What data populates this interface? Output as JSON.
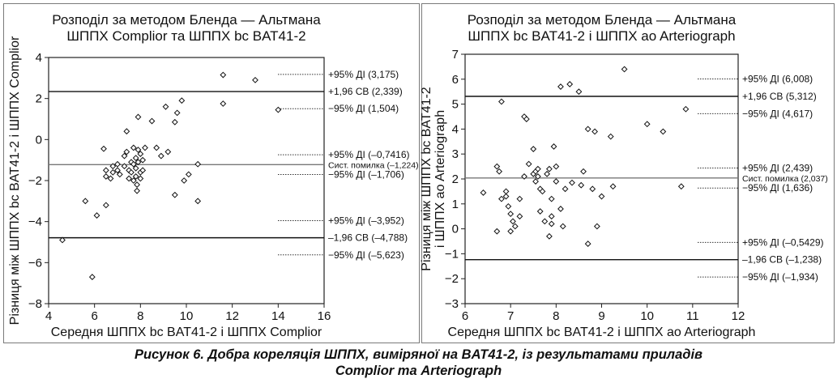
{
  "caption": {
    "line1": "Рисунок 6.  Добра кореляція ШППХ, виміряної на BAT41-2, із результатами приладів",
    "line2": "Complior та Arteriograph"
  },
  "chart_data": [
    {
      "type": "scatter",
      "title_line1": "Розподіл за методом Бленда — Альтмана",
      "title_line2": "ШППХ Complior та ШППХ bc BAT41-2",
      "xlabel": "Середня ШППХ bc BAT41-2 і ШППХ Complior",
      "ylabel": "Різниця між ШППХ bc BAT41-2 і ШППХ Complior",
      "xlim": [
        4,
        16
      ],
      "ylim": [
        -8,
        4
      ],
      "xticks": [
        "4",
        "6",
        "8",
        "10",
        "12",
        "14",
        "16"
      ],
      "yticks": [
        "−8",
        "−6",
        "−4",
        "−2",
        "0",
        "2",
        "4"
      ],
      "hlines": [
        {
          "y": 3.175,
          "style": "dotted",
          "label": "+95% ДІ (3,175)"
        },
        {
          "y": 2.339,
          "style": "solid",
          "label": "+1,96 СВ (2,339)"
        },
        {
          "y": 1.504,
          "style": "dotted",
          "label": "−95% ДІ (1,504)"
        },
        {
          "y": -0.7416,
          "style": "dotted",
          "label": "+95% ДІ (–0,7416)"
        },
        {
          "y": -1.224,
          "style": "solid-gray",
          "label": "Сист. помилка (–1,224)",
          "small": true
        },
        {
          "y": -1.706,
          "style": "dotted",
          "label": "−95% ДІ (–1,706)"
        },
        {
          "y": -3.952,
          "style": "dotted",
          "label": "+95% ДІ (–3,952)"
        },
        {
          "y": -4.788,
          "style": "solid",
          "label": "–1,96 СВ (–4,788)"
        },
        {
          "y": -5.623,
          "style": "dotted",
          "label": "−95% ДІ (–5,623)"
        }
      ],
      "points": [
        [
          4.6,
          -4.9
        ],
        [
          5.6,
          -3.0
        ],
        [
          5.9,
          -6.7
        ],
        [
          6.1,
          -3.7
        ],
        [
          6.5,
          -3.2
        ],
        [
          6.4,
          -0.45
        ],
        [
          6.5,
          -1.5
        ],
        [
          6.5,
          -1.8
        ],
        [
          6.7,
          -1.9
        ],
        [
          6.8,
          -1.3
        ],
        [
          6.8,
          -1.6
        ],
        [
          7.0,
          -1.2
        ],
        [
          7.0,
          -1.5
        ],
        [
          7.1,
          -1.7
        ],
        [
          7.3,
          -0.8
        ],
        [
          7.3,
          -1.3
        ],
        [
          7.4,
          -0.6
        ],
        [
          7.4,
          0.4
        ],
        [
          7.5,
          -1.5
        ],
        [
          7.5,
          -1.9
        ],
        [
          7.6,
          -1.1
        ],
        [
          7.6,
          -1.6
        ],
        [
          7.7,
          -0.4
        ],
        [
          7.7,
          -1.2
        ],
        [
          7.7,
          -2.0
        ],
        [
          7.8,
          -1.8
        ],
        [
          7.8,
          -0.9
        ],
        [
          7.8,
          -1.4
        ],
        [
          7.85,
          -2.2
        ],
        [
          7.85,
          -2.5
        ],
        [
          7.9,
          -0.5
        ],
        [
          7.9,
          -1.1
        ],
        [
          8.0,
          -1.6
        ],
        [
          8.0,
          -1.9
        ],
        [
          8.0,
          -0.7
        ],
        [
          7.9,
          1.1
        ],
        [
          8.1,
          -1.0
        ],
        [
          8.1,
          -1.5
        ],
        [
          8.2,
          -0.4
        ],
        [
          8.5,
          0.9
        ],
        [
          8.7,
          -0.4
        ],
        [
          8.9,
          -0.8
        ],
        [
          9.1,
          1.6
        ],
        [
          9.2,
          -0.6
        ],
        [
          9.5,
          0.85
        ],
        [
          9.6,
          1.3
        ],
        [
          9.5,
          -2.7
        ],
        [
          9.8,
          1.9
        ],
        [
          9.9,
          -2.0
        ],
        [
          10.1,
          -1.7
        ],
        [
          10.5,
          -3.0
        ],
        [
          10.5,
          -1.2
        ],
        [
          11.6,
          3.15
        ],
        [
          11.6,
          1.75
        ],
        [
          13.0,
          2.9
        ],
        [
          14.0,
          1.45
        ]
      ]
    },
    {
      "type": "scatter",
      "title_line1": "Розподіл за методом Бленда — Альтмана",
      "title_line2": "ШППХ bc BAT41-2 і ШППХ ao Arteriograph",
      "xlabel": "Середня ШППХ bc BAT41-2 і ШППХ ao Arteriograph",
      "ylabel_line1": "Різниця між ШППХ bc BAT41-2",
      "ylabel_line2": "і ШППХ ao Arteriograph",
      "xlim": [
        6,
        12
      ],
      "ylim": [
        -3,
        7
      ],
      "xticks": [
        "6",
        "7",
        "8",
        "9",
        "10",
        "11",
        "12"
      ],
      "yticks": [
        "−3",
        "−2",
        "−1",
        "0",
        "1",
        "2",
        "3",
        "4",
        "5",
        "6",
        "7"
      ],
      "hlines": [
        {
          "y": 6.008,
          "style": "dotted",
          "label": "+95% ДІ (6,008)"
        },
        {
          "y": 5.312,
          "style": "solid",
          "label": "+1,96 СВ (5,312)"
        },
        {
          "y": 4.617,
          "style": "dotted",
          "label": "−95% ДІ (4,617)"
        },
        {
          "y": 2.439,
          "style": "dotted",
          "label": "+95% ДІ (2,439)"
        },
        {
          "y": 2.037,
          "style": "solid-gray",
          "label": "Сист. помилка (2,037)",
          "small": true
        },
        {
          "y": 1.636,
          "style": "dotted",
          "label": "−95% ДІ (1,636)"
        },
        {
          "y": -0.5429,
          "style": "dotted",
          "label": "+95% ДІ (–0,5429)"
        },
        {
          "y": -1.238,
          "style": "solid",
          "label": "–1,96 СВ (–1,238)"
        },
        {
          "y": -1.934,
          "style": "dotted",
          "label": "−95% ДІ (–1,934)"
        }
      ],
      "points": [
        [
          6.4,
          1.45
        ],
        [
          6.7,
          -0.1
        ],
        [
          6.7,
          2.5
        ],
        [
          6.75,
          2.3
        ],
        [
          6.8,
          5.1
        ],
        [
          6.8,
          1.2
        ],
        [
          6.9,
          1.3
        ],
        [
          6.9,
          1.5
        ],
        [
          6.95,
          0.9
        ],
        [
          7.0,
          0.6
        ],
        [
          7.0,
          -0.1
        ],
        [
          7.05,
          0.3
        ],
        [
          7.1,
          0.1
        ],
        [
          7.2,
          1.2
        ],
        [
          7.2,
          0.5
        ],
        [
          7.3,
          4.5
        ],
        [
          7.35,
          4.4
        ],
        [
          7.3,
          2.1
        ],
        [
          7.4,
          2.6
        ],
        [
          7.5,
          3.2
        ],
        [
          7.5,
          2.2
        ],
        [
          7.55,
          1.9
        ],
        [
          7.55,
          2.3
        ],
        [
          7.6,
          2.4
        ],
        [
          7.6,
          2.1
        ],
        [
          7.65,
          1.6
        ],
        [
          7.7,
          1.5
        ],
        [
          7.65,
          0.7
        ],
        [
          7.75,
          0.3
        ],
        [
          7.8,
          2.2
        ],
        [
          7.85,
          2.4
        ],
        [
          7.85,
          -0.3
        ],
        [
          7.9,
          0.5
        ],
        [
          7.9,
          0.2
        ],
        [
          7.9,
          1.2
        ],
        [
          7.95,
          3.3
        ],
        [
          8.0,
          1.9
        ],
        [
          8.0,
          2.5
        ],
        [
          8.1,
          5.7
        ],
        [
          8.1,
          0.8
        ],
        [
          8.15,
          0.1
        ],
        [
          8.2,
          1.6
        ],
        [
          8.3,
          5.8
        ],
        [
          8.35,
          1.85
        ],
        [
          8.5,
          5.5
        ],
        [
          8.55,
          1.75
        ],
        [
          8.6,
          2.3
        ],
        [
          8.7,
          4.0
        ],
        [
          8.7,
          -0.6
        ],
        [
          8.8,
          1.6
        ],
        [
          8.85,
          3.9
        ],
        [
          8.9,
          0.1
        ],
        [
          9.0,
          1.3
        ],
        [
          9.2,
          3.7
        ],
        [
          9.25,
          1.7
        ],
        [
          9.5,
          6.4
        ],
        [
          10.0,
          4.2
        ],
        [
          10.35,
          3.9
        ],
        [
          10.75,
          1.7
        ],
        [
          10.85,
          4.8
        ]
      ]
    }
  ]
}
